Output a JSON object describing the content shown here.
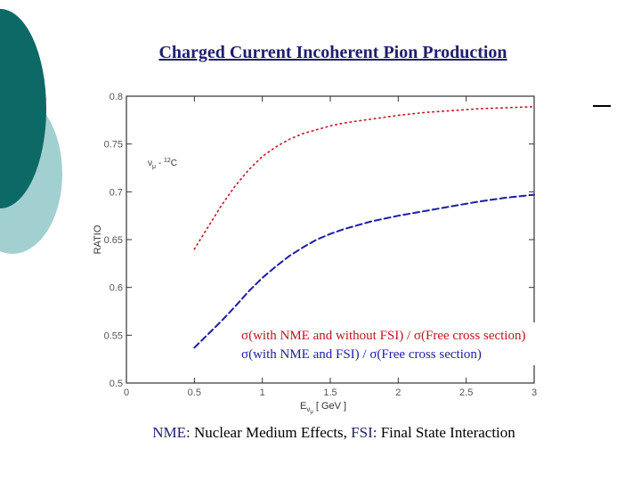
{
  "slide": {
    "title": "Charged Current Incoherent Pion Production",
    "footer": {
      "nme_label": "NME:",
      "nme_text": " Nuclear Medium Effects,",
      "fsi_label": "FSI:",
      "fsi_text": " Final State Interaction"
    }
  },
  "colors": {
    "deco_dark": "#0d6966",
    "deco_light": "#a2d0d1",
    "title": "#1f1f6e",
    "series_nme_only": "#c0141c",
    "series_nme_fsi": "#1c1ca6"
  },
  "chart_data": {
    "type": "line",
    "title": "",
    "xlabel": "Eνμ [ GeV ]",
    "ylabel": "RATIO",
    "annotation": "νμ - ¹²C",
    "xlim": [
      0,
      3
    ],
    "ylim": [
      0.5,
      0.8
    ],
    "xticks": [
      "0",
      "0.5",
      "1",
      "1.5",
      "2",
      "2.5",
      "3"
    ],
    "yticks": [
      "0.5",
      "0.55",
      "0.6",
      "0.65",
      "0.7",
      "0.75",
      "0.8"
    ],
    "series": [
      {
        "name": "σ(with NME and without FSI) / σ(Free cross section)",
        "style": "dotted",
        "color": "#c0141c",
        "x": [
          0.5,
          0.6,
          0.7,
          0.8,
          0.9,
          1.0,
          1.1,
          1.2,
          1.3,
          1.4,
          1.5,
          1.6,
          1.7,
          1.8,
          1.9,
          2.0,
          2.2,
          2.4,
          2.6,
          2.8,
          3.0
        ],
        "y": [
          0.64,
          0.663,
          0.686,
          0.706,
          0.723,
          0.737,
          0.747,
          0.755,
          0.761,
          0.765,
          0.769,
          0.772,
          0.774,
          0.776,
          0.778,
          0.78,
          0.783,
          0.785,
          0.787,
          0.788,
          0.789
        ]
      },
      {
        "name": "σ(with NME and FSI) / σ(Free cross section)",
        "style": "dashed",
        "color": "#1c1ca6",
        "x": [
          0.5,
          0.6,
          0.7,
          0.8,
          0.9,
          1.0,
          1.1,
          1.2,
          1.3,
          1.4,
          1.5,
          1.6,
          1.7,
          1.8,
          1.9,
          2.0,
          2.2,
          2.4,
          2.6,
          2.8,
          3.0
        ],
        "y": [
          0.537,
          0.551,
          0.565,
          0.58,
          0.596,
          0.61,
          0.622,
          0.633,
          0.642,
          0.65,
          0.656,
          0.661,
          0.665,
          0.669,
          0.672,
          0.675,
          0.68,
          0.685,
          0.69,
          0.694,
          0.697
        ]
      }
    ],
    "legend": "bottom-right"
  }
}
